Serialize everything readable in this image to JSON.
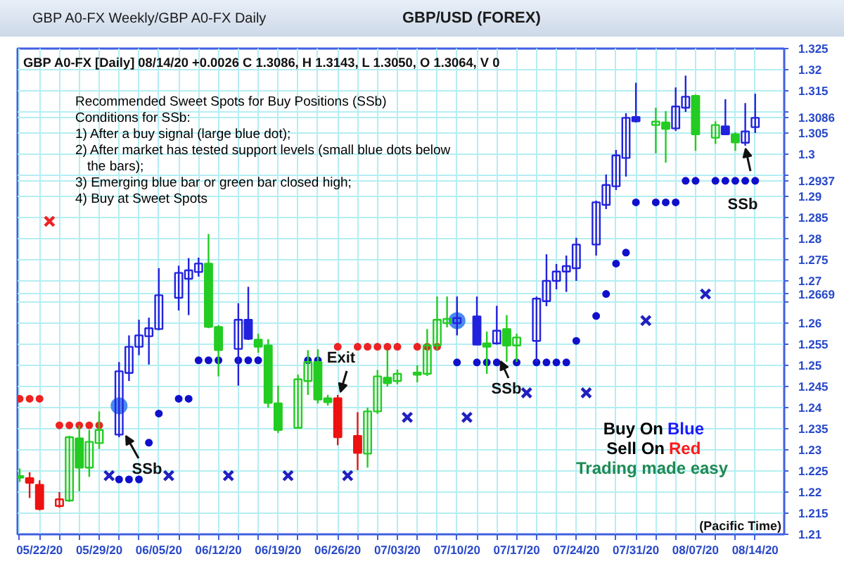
{
  "chart_data": {
    "type": "candlestick",
    "title": "GBP/USD (FOREX)",
    "subtitle": "GBP A0-FX Weekly/GBP A0-FX Daily",
    "categories": [
      null,
      null,
      "05/22/20",
      null,
      null,
      null,
      null,
      null,
      "05/29/20",
      null,
      null,
      null,
      null,
      null,
      "06/05/20",
      null,
      null,
      null,
      null,
      null,
      "06/12/20",
      null,
      null,
      null,
      null,
      null,
      "06/19/20",
      null,
      null,
      null,
      null,
      null,
      "06/26/20",
      null,
      null,
      null,
      null,
      null,
      "07/03/20",
      null,
      null,
      null,
      null,
      null,
      "07/10/20",
      null,
      null,
      null,
      null,
      null,
      "07/17/20",
      null,
      null,
      null,
      null,
      null,
      "07/24/20",
      null,
      null,
      null,
      null,
      null,
      "07/31/20",
      null,
      null,
      null,
      null,
      null,
      "08/07/20",
      null,
      null,
      null,
      null,
      null,
      "08/14/20"
    ],
    "ohlc": [
      [
        1.2238,
        1.2256,
        1.2224,
        1.2234
      ],
      [
        1.2233,
        1.2247,
        1.2186,
        1.2222
      ],
      [
        1.2217,
        1.2228,
        1.2157,
        1.216
      ],
      null,
      [
        1.2167,
        1.22,
        1.2163,
        1.2183
      ],
      [
        1.218,
        1.2333,
        1.2177,
        1.233
      ],
      [
        1.2327,
        1.2358,
        1.2202,
        1.2258
      ],
      [
        1.2258,
        1.2347,
        1.2236,
        1.2319
      ],
      [
        1.2316,
        1.2391,
        1.2302,
        1.2347
      ],
      null,
      [
        1.2336,
        1.2508,
        1.233,
        1.2486
      ],
      [
        1.2482,
        1.2571,
        1.2463,
        1.2544
      ],
      [
        1.2544,
        1.2608,
        1.2524,
        1.2571
      ],
      [
        1.2569,
        1.2613,
        1.2502,
        1.2588
      ],
      [
        1.2586,
        1.273,
        1.2583,
        1.2666
      ],
      null,
      [
        1.266,
        1.2736,
        1.263,
        1.2719
      ],
      [
        1.2705,
        1.2754,
        1.2619,
        1.2725
      ],
      [
        1.2721,
        1.2755,
        1.271,
        1.2741
      ],
      [
        1.2741,
        1.2811,
        1.2588,
        1.2591
      ],
      [
        1.2591,
        1.2595,
        1.2474,
        1.2536
      ],
      null,
      [
        1.2539,
        1.2647,
        1.2452,
        1.2608
      ],
      [
        1.2608,
        1.2686,
        1.256,
        1.2563
      ],
      [
        1.2561,
        1.2575,
        1.253,
        1.2544
      ],
      [
        1.2547,
        1.2562,
        1.24,
        1.2411
      ],
      [
        1.241,
        1.2452,
        1.234,
        1.2347
      ],
      null,
      [
        1.2352,
        1.2478,
        1.235,
        1.2467
      ],
      [
        1.2463,
        1.2536,
        1.243,
        1.2508
      ],
      [
        1.2508,
        1.2538,
        1.241,
        1.2419
      ],
      [
        1.2422,
        1.243,
        1.2405,
        1.2413
      ],
      [
        1.2422,
        1.243,
        1.2311,
        1.233
      ],
      null,
      [
        1.2333,
        1.2389,
        1.2252,
        1.2293
      ],
      [
        1.2291,
        1.24,
        1.2258,
        1.2391
      ],
      [
        1.2391,
        1.2489,
        1.2385,
        1.2474
      ],
      [
        1.2471,
        1.2536,
        1.245,
        1.2458
      ],
      [
        1.2463,
        1.249,
        1.2455,
        1.248
      ],
      null,
      [
        1.2483,
        1.25,
        1.246,
        1.2478
      ],
      [
        1.248,
        1.2586,
        1.2475,
        1.2547
      ],
      [
        1.2547,
        1.2663,
        1.2536,
        1.2608
      ],
      [
        1.26,
        1.2663,
        1.259,
        1.261
      ],
      [
        1.26,
        1.2663,
        1.2571,
        1.2612
      ],
      null,
      [
        1.2616,
        1.2663,
        1.2549,
        1.2549
      ],
      [
        1.2552,
        1.258,
        1.248,
        1.2544
      ],
      [
        1.2552,
        1.2641,
        1.2549,
        1.2582
      ],
      [
        1.2586,
        1.2619,
        1.2508,
        1.2547
      ],
      [
        1.2547,
        1.2575,
        1.2508,
        1.2566
      ],
      null,
      [
        1.2558,
        1.2663,
        1.2508,
        1.2658
      ],
      [
        1.2652,
        1.2763,
        1.264,
        1.27
      ],
      [
        1.27,
        1.274,
        1.268,
        1.2722
      ],
      [
        1.2722,
        1.276,
        1.2674,
        1.2735
      ],
      [
        1.273,
        1.2802,
        1.27,
        1.2786
      ],
      null,
      [
        1.2786,
        1.289,
        1.276,
        1.2886
      ],
      [
        1.288,
        1.2952,
        1.287,
        1.2927
      ],
      [
        1.2924,
        1.301,
        1.2915,
        1.2997
      ],
      [
        1.2991,
        1.3097,
        1.2947,
        1.3086
      ],
      [
        1.3088,
        1.3169,
        1.3075,
        1.3078
      ],
      null,
      [
        1.3069,
        1.311,
        1.3002,
        1.3077
      ],
      [
        1.3075,
        1.3102,
        1.298,
        1.306
      ],
      [
        1.3061,
        1.3158,
        1.3055,
        1.3113
      ],
      [
        1.311,
        1.3186,
        1.31,
        1.3136
      ],
      [
        1.3138,
        1.3141,
        1.3008,
        1.3047
      ],
      null,
      [
        1.3039,
        1.3078,
        1.3024,
        1.3069
      ],
      [
        1.3066,
        1.313,
        1.3045,
        1.3047
      ],
      [
        1.3047,
        1.3052,
        1.3008,
        1.3028
      ],
      [
        1.3027,
        1.3121,
        1.302,
        1.3054
      ],
      [
        1.3064,
        1.3143,
        1.305,
        1.3086
      ]
    ],
    "colors": [
      "#22cc22",
      "#ee1111",
      "#ee1111",
      null,
      "#ee1111",
      "#22cc22",
      "#22cc22",
      "#22cc22",
      "#22cc22",
      null,
      "#2222dd",
      "#2222dd",
      "#2222dd",
      "#2222dd",
      "#2222dd",
      null,
      "#2222dd",
      "#2222dd",
      "#2222dd",
      "#22cc22",
      "#22cc22",
      null,
      "#2222dd",
      "#2222dd",
      "#22cc22",
      "#22cc22",
      "#22cc22",
      null,
      "#22cc22",
      "#22cc22",
      "#22cc22",
      "#22cc22",
      "#ee1111",
      null,
      "#ee1111",
      "#22cc22",
      "#22cc22",
      "#22cc22",
      "#22cc22",
      null,
      "#22cc22",
      "#22cc22",
      "#22cc22",
      "#22cc22",
      "#2222dd",
      null,
      "#2222dd",
      "#22cc22",
      "#2222dd",
      "#22cc22",
      "#22cc22",
      null,
      "#2222dd",
      "#2222dd",
      "#2222dd",
      "#2222dd",
      "#2222dd",
      null,
      "#2222dd",
      "#2222dd",
      "#2222dd",
      "#2222dd",
      "#2222dd",
      null,
      "#22cc22",
      "#22cc22",
      "#2222dd",
      "#2222dd",
      "#22cc22",
      null,
      "#22cc22",
      "#2222dd",
      "#22cc22",
      "#2222dd",
      "#2222dd"
    ],
    "series": [
      {
        "type": "scatter",
        "marker": "circle",
        "color": "#ee2222",
        "values": [
          1.2421,
          1.2421,
          1.2421,
          null,
          1.2358,
          1.2358,
          1.2358,
          1.2358,
          1.2358,
          null,
          null,
          null,
          null,
          null,
          null,
          null,
          null,
          null,
          null,
          null,
          null,
          null,
          null,
          null,
          null,
          null,
          null,
          null,
          null,
          null,
          null,
          null,
          1.2544,
          null,
          1.2544,
          1.2544,
          1.2544,
          1.2544,
          1.2544,
          null,
          1.2544,
          1.2544,
          1.2544,
          null,
          null,
          null,
          null,
          null,
          null,
          null,
          null,
          null,
          null,
          null,
          null,
          null,
          null,
          null,
          null,
          null,
          null,
          null,
          null,
          null,
          null,
          null,
          null,
          null,
          null,
          null,
          null,
          null,
          null,
          null,
          null
        ]
      },
      {
        "type": "scatter",
        "marker": "cross",
        "color": "#ee2222",
        "values": [
          null,
          null,
          null,
          1.2841,
          null,
          null,
          null,
          null,
          null,
          null,
          null,
          null,
          null,
          null,
          null,
          null,
          null,
          null,
          null,
          null,
          null,
          null,
          null,
          null,
          null,
          null,
          null,
          null,
          null,
          null,
          null,
          null,
          null,
          null,
          null,
          null,
          null,
          null,
          null,
          null,
          null,
          null,
          null,
          null,
          null,
          null,
          null,
          null,
          null,
          null,
          null,
          null,
          null,
          null,
          null,
          null,
          null,
          null,
          null,
          null,
          null,
          null,
          null,
          null,
          null,
          null,
          null,
          null,
          null,
          null,
          null,
          null,
          null,
          null,
          null
        ]
      },
      {
        "type": "scatter",
        "marker": "circle",
        "color": "#1010cc",
        "values": [
          null,
          null,
          null,
          null,
          null,
          null,
          null,
          null,
          null,
          null,
          1.223,
          1.223,
          1.223,
          1.2317,
          1.2386,
          null,
          1.2421,
          1.2421,
          1.2512,
          1.2512,
          1.2512,
          null,
          1.2512,
          1.2512,
          1.2512,
          null,
          null,
          null,
          null,
          1.2512,
          1.2512,
          null,
          null,
          null,
          null,
          null,
          null,
          null,
          null,
          null,
          null,
          null,
          null,
          null,
          1.2507,
          null,
          1.2507,
          1.2507,
          1.2507,
          null,
          1.2507,
          null,
          1.2507,
          1.2507,
          1.2507,
          1.2507,
          1.2558,
          null,
          1.2617,
          1.2669,
          1.2741,
          1.2767,
          1.2886,
          null,
          1.2886,
          1.2886,
          1.2886,
          1.2937,
          1.2937,
          null,
          1.2937,
          1.2937,
          1.2937,
          1.2937,
          1.2937
        ]
      },
      {
        "type": "bubble",
        "color": "#4a8af0",
        "values": [
          null,
          null,
          null,
          null,
          null,
          null,
          null,
          null,
          null,
          null,
          1.2404,
          null,
          null,
          null,
          null,
          null,
          null,
          null,
          null,
          null,
          null,
          null,
          null,
          null,
          null,
          null,
          null,
          null,
          null,
          null,
          null,
          null,
          null,
          null,
          null,
          null,
          null,
          null,
          null,
          null,
          null,
          null,
          null,
          null,
          1.2606,
          null,
          null,
          null,
          null,
          null,
          null,
          null,
          null,
          null,
          null,
          null,
          null,
          null,
          null,
          null,
          null,
          null,
          null,
          null,
          null,
          null,
          null,
          null,
          null,
          null,
          null,
          null,
          null,
          null,
          null
        ],
        "sizes": [
          null,
          null,
          null,
          null,
          null,
          null,
          null,
          null,
          null,
          null,
          1,
          null,
          null,
          null,
          null,
          null,
          null,
          null,
          null,
          null,
          null,
          null,
          null,
          null,
          null,
          null,
          null,
          null,
          null,
          null,
          null,
          null,
          null,
          null,
          null,
          null,
          null,
          null,
          null,
          null,
          null,
          null,
          null,
          null,
          1,
          null,
          null,
          null,
          null,
          null,
          null,
          null,
          null,
          null,
          null,
          null,
          null,
          null,
          null,
          null,
          null,
          null,
          null,
          null,
          null,
          null,
          null,
          null,
          null,
          null,
          null,
          null,
          null,
          null,
          null
        ]
      },
      {
        "type": "scatter",
        "marker": "cross",
        "color": "#2020c0",
        "values": [
          null,
          null,
          null,
          null,
          null,
          null,
          null,
          null,
          null,
          1.2239,
          null,
          null,
          null,
          null,
          null,
          1.2239,
          null,
          null,
          null,
          null,
          null,
          1.2239,
          null,
          null,
          null,
          null,
          null,
          1.2239,
          null,
          null,
          null,
          null,
          null,
          1.2239,
          null,
          null,
          null,
          null,
          null,
          1.2377,
          null,
          null,
          null,
          null,
          null,
          1.2377,
          null,
          null,
          null,
          null,
          null,
          1.2435,
          null,
          null,
          null,
          null,
          null,
          1.2435,
          null,
          null,
          null,
          null,
          null,
          1.2606,
          null,
          null,
          null,
          null,
          null,
          1.2669,
          null,
          null,
          null,
          null,
          null
        ]
      }
    ],
    "ylim": [
      1.21,
      1.325
    ],
    "yticks": [
      1.21,
      1.215,
      1.22,
      1.225,
      1.23,
      1.235,
      1.24,
      1.245,
      1.25,
      1.255,
      1.26,
      {
        "value": 1.265,
        "label": null
      },
      {
        "value": 1.2669,
        "label": "1.2669"
      },
      1.27,
      1.275,
      1.28,
      1.285,
      1.29,
      {
        "value": 1.2937,
        "label": "1.2937"
      },
      {
        "value": 1.295,
        "label": null
      },
      1.3,
      1.305,
      {
        "value": 1.3086,
        "label": "1.3086"
      },
      {
        "value": 1.31,
        "label": null
      },
      1.315,
      1.32,
      1.325
    ],
    "grid": true,
    "annotations": [
      "GBP A0-FX [Daily] 08/14/20 +0.0026 C 1.3086, H 1.3143, L 1.3050, O 1.3064, V 0",
      "Recommended Sweet Spots for Buy Positions (SSb)",
      "Conditions for SSb:",
      "1) After a buy signal (large blue dot);",
      "2) After market has tested support levels (small blue dots below",
      "the bars);",
      "3) Emerging blue bar or green bar closed high;",
      "4) Buy at Sweet Spots",
      "Buy On",
      "Blue",
      "Sell On",
      "Red",
      "Trading made easy",
      "(Pacific Time)",
      "Exit",
      "SSb",
      "SSb",
      "SSb"
    ]
  }
}
